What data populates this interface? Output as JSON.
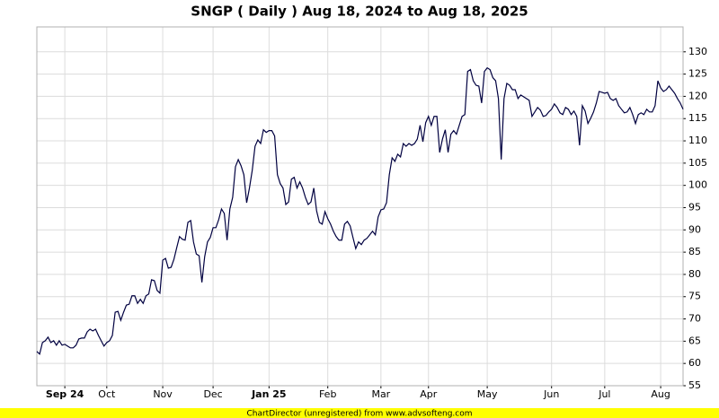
{
  "chart_data": {
    "type": "line",
    "title": "SNGP ( Daily ) Aug 18, 2024 to Aug 18, 2025",
    "footer": "ChartDirector (unregistered) from www.advsofteng.com",
    "color": "#000040",
    "grid": true,
    "xlim": [
      0,
      231
    ],
    "xticks": [
      {
        "value": 10,
        "label": "Sep 24"
      },
      {
        "value": 25,
        "label": "Oct"
      },
      {
        "value": 45,
        "label": "Nov"
      },
      {
        "value": 63,
        "label": "Dec"
      },
      {
        "value": 83,
        "label": "Jan 25"
      },
      {
        "value": 104,
        "label": "Feb"
      },
      {
        "value": 123,
        "label": "Mar"
      },
      {
        "value": 140,
        "label": "Apr"
      },
      {
        "value": 161,
        "label": "May"
      },
      {
        "value": 184,
        "label": "Jun"
      },
      {
        "value": 203,
        "label": "Jul"
      },
      {
        "value": 223,
        "label": "Aug"
      }
    ],
    "ylim": [
      55,
      135.6
    ],
    "yticks": [
      55,
      60,
      65,
      70,
      75,
      80,
      85,
      90,
      95,
      100,
      105,
      110,
      115,
      120,
      125,
      130
    ],
    "values": [
      62.7,
      62.1,
      64.7,
      65.1,
      65.9,
      64.7,
      65.1,
      64.1,
      65.1,
      64.1,
      64.3,
      63.9,
      63.5,
      63.5,
      64.1,
      65.5,
      65.7,
      65.7,
      67.1,
      67.7,
      67.3,
      67.7,
      66.3,
      65.1,
      63.9,
      64.7,
      65.1,
      66.3,
      71.5,
      71.7,
      69.7,
      71.5,
      73.1,
      73.3,
      75.2,
      75.2,
      73.5,
      74.4,
      73.5,
      75.2,
      75.6,
      78.8,
      78.6,
      76.4,
      75.8,
      83.2,
      83.6,
      81.4,
      81.6,
      83.4,
      86,
      88.5,
      87.9,
      87.7,
      91.7,
      92.1,
      87.3,
      84.6,
      84.2,
      78.2,
      84,
      87.3,
      88.3,
      90.5,
      90.5,
      92.3,
      94.7,
      93.7,
      87.7,
      94.7,
      97.3,
      104.2,
      105.8,
      104.4,
      102.4,
      96.1,
      99.4,
      103.4,
      108.8,
      110.2,
      109.4,
      112.5,
      111.9,
      112.3,
      112.3,
      111.1,
      102.4,
      100.4,
      99.4,
      95.7,
      96.3,
      101.4,
      101.8,
      99.4,
      100.8,
      99.4,
      97.3,
      95.7,
      96.3,
      99.4,
      94.3,
      91.7,
      91.3,
      94.1,
      92.5,
      91.3,
      89.7,
      88.5,
      87.7,
      87.7,
      91.3,
      91.9,
      90.9,
      88.3,
      85.8,
      87.3,
      86.7,
      87.7,
      88.1,
      88.9,
      89.7,
      88.9,
      92.9,
      94.5,
      94.7,
      96.1,
      102.4,
      106.2,
      105.4,
      107,
      106.4,
      109.4,
      108.8,
      109.4,
      109,
      109.4,
      110.4,
      113.5,
      109.8,
      114.1,
      115.5,
      113.5,
      115.5,
      115.5,
      107.4,
      110.4,
      112.5,
      107.4,
      111.5,
      112.3,
      111.5,
      113.5,
      115.5,
      115.9,
      125.6,
      126,
      123.5,
      122.5,
      122.3,
      118.5,
      125.6,
      126.4,
      126,
      124.2,
      123.5,
      119.5,
      105.8,
      119.5,
      122.9,
      122.5,
      121.5,
      121.5,
      119.5,
      120.3,
      119.9,
      119.5,
      119.1,
      115.5,
      116.5,
      117.5,
      116.9,
      115.5,
      115.7,
      116.5,
      117.1,
      118.3,
      117.5,
      116.3,
      115.9,
      117.5,
      117.1,
      115.9,
      116.7,
      115.5,
      109,
      117.9,
      116.7,
      113.9,
      115.1,
      116.5,
      118.5,
      121.1,
      120.9,
      120.7,
      120.9,
      119.5,
      119.1,
      119.5,
      117.9,
      117.1,
      116.3,
      116.5,
      117.5,
      115.9,
      113.9,
      115.9,
      116.3,
      115.9,
      117.1,
      116.5,
      116.5,
      117.9,
      123.5,
      121.9,
      121.1,
      121.5,
      122.3,
      121.5,
      120.7,
      119.5,
      118.5,
      117.1
    ]
  }
}
